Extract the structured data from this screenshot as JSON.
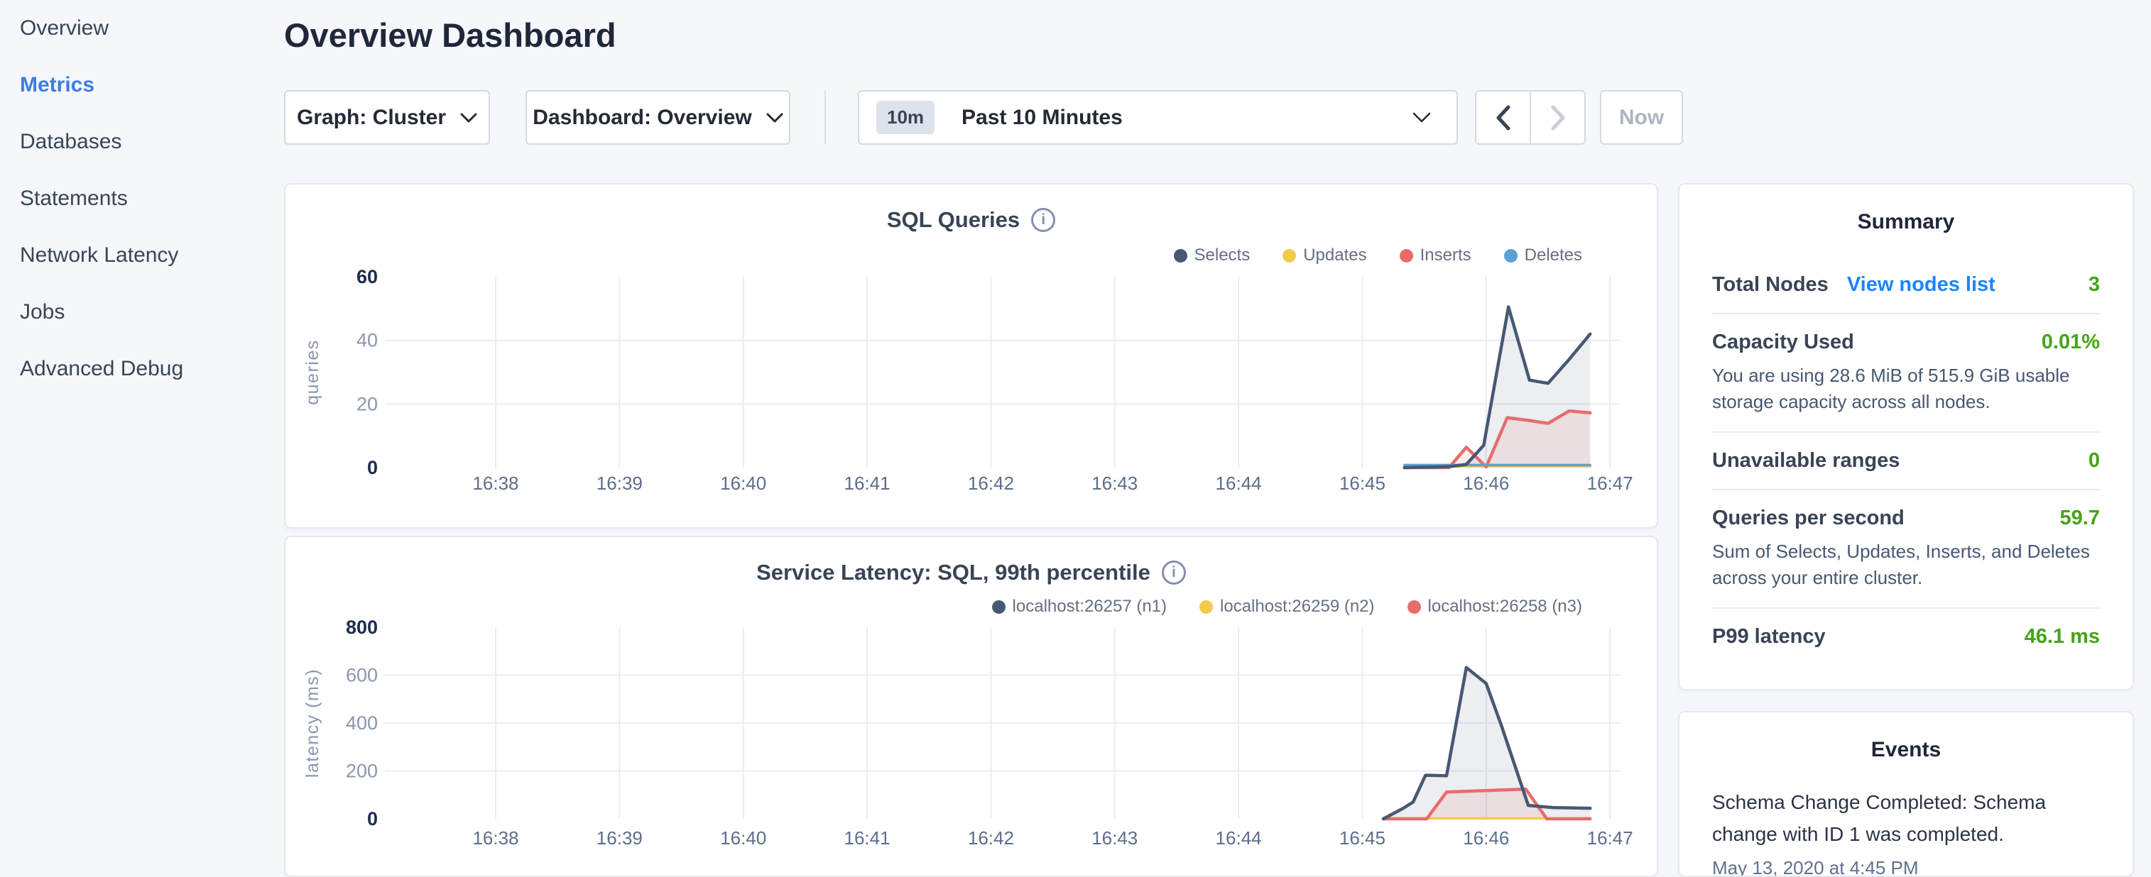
{
  "sidebar": {
    "items": [
      {
        "label": "Overview",
        "active": false
      },
      {
        "label": "Metrics",
        "active": true
      },
      {
        "label": "Databases",
        "active": false
      },
      {
        "label": "Statements",
        "active": false
      },
      {
        "label": "Network Latency",
        "active": false
      },
      {
        "label": "Jobs",
        "active": false
      },
      {
        "label": "Advanced Debug",
        "active": false
      }
    ]
  },
  "header": {
    "title": "Overview Dashboard"
  },
  "toolbar": {
    "graph_dropdown": "Graph: Cluster",
    "dashboard_dropdown": "Dashboard: Overview",
    "time_badge": "10m",
    "time_label": "Past 10 Minutes",
    "now_label": "Now"
  },
  "summary": {
    "title": "Summary",
    "rows": [
      {
        "label": "Total Nodes",
        "link": "View nodes list",
        "value": "3",
        "description": ""
      },
      {
        "label": "Capacity Used",
        "link": "",
        "value": "0.01%",
        "description": "You are using 28.6 MiB of 515.9 GiB usable storage capacity across all nodes."
      },
      {
        "label": "Unavailable ranges",
        "link": "",
        "value": "0",
        "description": ""
      },
      {
        "label": "Queries per second",
        "link": "",
        "value": "59.7",
        "description": "Sum of Selects, Updates, Inserts, and Deletes across your entire cluster."
      },
      {
        "label": "P99 latency",
        "link": "",
        "value": "46.1 ms",
        "description": ""
      }
    ]
  },
  "events": {
    "title": "Events",
    "items": [
      {
        "message": "Schema Change Completed: Schema change with ID 1 was completed.",
        "timestamp": "May 13, 2020 at 4:45 PM"
      }
    ]
  },
  "colors": {
    "accent_blue": "#1a85ff",
    "nav_active_blue": "#3d7de2",
    "value_green": "#46a417",
    "series_navy": "#475872",
    "series_yellow": "#f4ca4c",
    "series_red": "#e86c6c",
    "series_blue": "#5ca1d3"
  },
  "chart_data": [
    {
      "type": "area",
      "title": "SQL Queries",
      "ylabel": "queries",
      "xlabel": "",
      "ylim": [
        0,
        60
      ],
      "yticks": [
        0,
        20,
        40,
        60
      ],
      "grid": true,
      "legend_position": "top-right",
      "x_tick_labels": [
        "16:38",
        "16:39",
        "16:40",
        "16:41",
        "16:42",
        "16:43",
        "16:44",
        "16:45",
        "16:46",
        "16:47"
      ],
      "x_unit": "minutes after 16:38",
      "series": [
        {
          "name": "Selects",
          "color": "#475872",
          "fill": "rgba(71,88,114,0.10)",
          "stroke_width": 4.5,
          "z": 4,
          "points": [
            [
              7.34,
              0
            ],
            [
              7.7,
              0.3
            ],
            [
              7.84,
              1
            ],
            [
              7.98,
              7
            ],
            [
              8.18,
              50.5
            ],
            [
              8.35,
              27.5
            ],
            [
              8.5,
              26.5
            ],
            [
              8.67,
              34
            ],
            [
              8.84,
              42
            ]
          ]
        },
        {
          "name": "Updates",
          "color": "#f4ca4c",
          "fill": null,
          "stroke_width": 3.5,
          "z": 1,
          "points": [
            [
              7.34,
              0.4
            ],
            [
              8.84,
              0.4
            ]
          ]
        },
        {
          "name": "Inserts",
          "color": "#e86c6c",
          "fill": "rgba(232,108,108,0.12)",
          "stroke_width": 4.5,
          "z": 2,
          "points": [
            [
              7.34,
              0
            ],
            [
              7.7,
              0
            ],
            [
              7.84,
              6.4
            ],
            [
              8.0,
              0.2
            ],
            [
              8.17,
              15.7
            ],
            [
              8.35,
              14.8
            ],
            [
              8.5,
              13.9
            ],
            [
              8.67,
              17.8
            ],
            [
              8.84,
              17.2
            ]
          ]
        },
        {
          "name": "Deletes",
          "color": "#5ca1d3",
          "fill": null,
          "stroke_width": 3.5,
          "z": 3,
          "points": [
            [
              7.34,
              0.8
            ],
            [
              8.84,
              0.8
            ]
          ]
        }
      ]
    },
    {
      "type": "area",
      "title": "Service Latency: SQL, 99th percentile",
      "ylabel": "latency (ms)",
      "xlabel": "",
      "ylim": [
        0,
        800
      ],
      "yticks": [
        0,
        200,
        400,
        600,
        800
      ],
      "grid": true,
      "legend_position": "top-right",
      "x_tick_labels": [
        "16:38",
        "16:39",
        "16:40",
        "16:41",
        "16:42",
        "16:43",
        "16:44",
        "16:45",
        "16:46",
        "16:47"
      ],
      "x_unit": "minutes after 16:38",
      "series": [
        {
          "name": "localhost:26257 (n1)",
          "color": "#475872",
          "fill": "rgba(71,88,114,0.10)",
          "stroke_width": 4.5,
          "z": 3,
          "points": [
            [
              7.17,
              0
            ],
            [
              7.33,
              44
            ],
            [
              7.41,
              70
            ],
            [
              7.51,
              182
            ],
            [
              7.68,
              180
            ],
            [
              7.84,
              632
            ],
            [
              8.0,
              565
            ],
            [
              8.12,
              394
            ],
            [
              8.34,
              56
            ],
            [
              8.54,
              47
            ],
            [
              8.84,
              44
            ]
          ]
        },
        {
          "name": "localhost:26259 (n2)",
          "color": "#f4ca4c",
          "fill": null,
          "stroke_width": 3.5,
          "z": 1,
          "points": [
            [
              7.17,
              2
            ],
            [
              8.84,
              2
            ]
          ]
        },
        {
          "name": "localhost:26258 (n3)",
          "color": "#e86c6c",
          "fill": "rgba(232,108,108,0.12)",
          "stroke_width": 4.5,
          "z": 2,
          "points": [
            [
              7.17,
              0
            ],
            [
              7.52,
              0
            ],
            [
              7.68,
              112
            ],
            [
              8.32,
              124
            ],
            [
              8.49,
              0
            ],
            [
              8.84,
              0
            ]
          ]
        }
      ]
    }
  ]
}
